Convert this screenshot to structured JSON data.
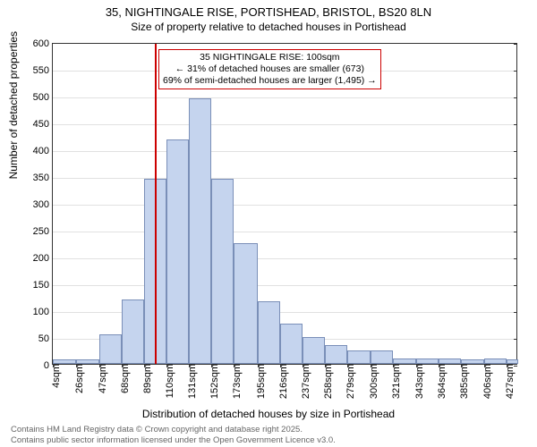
{
  "title": "35, NIGHTINGALE RISE, PORTISHEAD, BRISTOL, BS20 8LN",
  "subtitle": "Size of property relative to detached houses in Portishead",
  "y_label": "Number of detached properties",
  "x_label": "Distribution of detached houses by size in Portishead",
  "chart": {
    "type": "histogram",
    "ylim": [
      0,
      600
    ],
    "ytick_step": 50,
    "background_color": "#ffffff",
    "bar_fill": "#c5d4ee",
    "bar_border": "#7a8fb8",
    "ref_line_color": "#cc0000",
    "ref_line_x": 100,
    "x_min": 4,
    "x_max": 438,
    "x_ticks": [
      4,
      26,
      47,
      68,
      89,
      110,
      131,
      152,
      173,
      195,
      216,
      237,
      258,
      279,
      300,
      321,
      343,
      364,
      385,
      406,
      427
    ],
    "x_tick_unit": "sqm",
    "bars": [
      {
        "x": 4,
        "w": 22,
        "v": 8
      },
      {
        "x": 26,
        "w": 21,
        "v": 8
      },
      {
        "x": 47,
        "w": 21,
        "v": 55
      },
      {
        "x": 68,
        "w": 21,
        "v": 120
      },
      {
        "x": 89,
        "w": 21,
        "v": 345
      },
      {
        "x": 110,
        "w": 21,
        "v": 418
      },
      {
        "x": 131,
        "w": 21,
        "v": 495
      },
      {
        "x": 152,
        "w": 21,
        "v": 345
      },
      {
        "x": 173,
        "w": 22,
        "v": 225
      },
      {
        "x": 195,
        "w": 21,
        "v": 117
      },
      {
        "x": 216,
        "w": 21,
        "v": 75
      },
      {
        "x": 237,
        "w": 21,
        "v": 50
      },
      {
        "x": 258,
        "w": 21,
        "v": 35
      },
      {
        "x": 279,
        "w": 21,
        "v": 25
      },
      {
        "x": 300,
        "w": 21,
        "v": 25
      },
      {
        "x": 321,
        "w": 22,
        "v": 10
      },
      {
        "x": 343,
        "w": 21,
        "v": 10
      },
      {
        "x": 364,
        "w": 21,
        "v": 10
      },
      {
        "x": 385,
        "w": 21,
        "v": 8
      },
      {
        "x": 406,
        "w": 21,
        "v": 10
      },
      {
        "x": 427,
        "w": 11,
        "v": 8
      }
    ]
  },
  "annotation": {
    "line1": "35 NIGHTINGALE RISE: 100sqm",
    "line2": "← 31% of detached houses are smaller (673)",
    "line3": "69% of semi-detached houses are larger (1,495) →"
  },
  "footer": {
    "line1": "Contains HM Land Registry data © Crown copyright and database right 2025.",
    "line2": "Contains public sector information licensed under the Open Government Licence v3.0."
  }
}
